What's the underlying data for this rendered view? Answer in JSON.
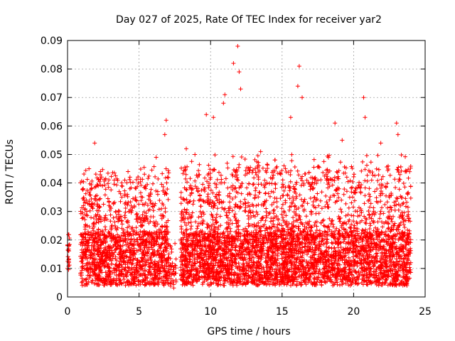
{
  "chart_data": {
    "type": "scatter",
    "title": "Day 027 of 2025, Rate Of TEC Index for receiver yar2",
    "xlabel": "GPS time / hours",
    "ylabel": "ROTI / TECUs",
    "xlim": [
      0,
      25
    ],
    "ylim": [
      0,
      0.09
    ],
    "x_ticks": [
      0,
      5,
      10,
      15,
      20,
      25
    ],
    "y_ticks": [
      0,
      0.01,
      0.02,
      0.03,
      0.04,
      0.05,
      0.06,
      0.07,
      0.08,
      0.09
    ],
    "x_tick_labels": [
      "0",
      "5",
      "10",
      "15",
      "20",
      "25"
    ],
    "y_tick_labels": [
      "0",
      "0.01",
      "0.02",
      "0.03",
      "0.04",
      "0.05",
      "0.06",
      "0.07",
      "0.08",
      "0.09"
    ],
    "grid": true,
    "marker": "+",
    "marker_color": "#ff0000",
    "notable_points": [
      {
        "x": 0.0,
        "y": 0.01
      },
      {
        "x": 0.0,
        "y": 0.018
      },
      {
        "x": 1.1,
        "y": 0.038
      },
      {
        "x": 1.5,
        "y": 0.045
      },
      {
        "x": 1.9,
        "y": 0.054
      },
      {
        "x": 2.3,
        "y": 0.044
      },
      {
        "x": 4.0,
        "y": 0.041
      },
      {
        "x": 6.2,
        "y": 0.049
      },
      {
        "x": 6.8,
        "y": 0.057
      },
      {
        "x": 6.9,
        "y": 0.062
      },
      {
        "x": 8.3,
        "y": 0.052
      },
      {
        "x": 9.7,
        "y": 0.064
      },
      {
        "x": 10.2,
        "y": 0.063
      },
      {
        "x": 10.9,
        "y": 0.068
      },
      {
        "x": 11.0,
        "y": 0.071
      },
      {
        "x": 11.6,
        "y": 0.082
      },
      {
        "x": 11.9,
        "y": 0.088
      },
      {
        "x": 12.0,
        "y": 0.079
      },
      {
        "x": 12.1,
        "y": 0.073
      },
      {
        "x": 13.5,
        "y": 0.051
      },
      {
        "x": 15.6,
        "y": 0.063
      },
      {
        "x": 16.1,
        "y": 0.074
      },
      {
        "x": 16.2,
        "y": 0.081
      },
      {
        "x": 16.4,
        "y": 0.07
      },
      {
        "x": 18.7,
        "y": 0.061
      },
      {
        "x": 19.2,
        "y": 0.055
      },
      {
        "x": 20.7,
        "y": 0.07
      },
      {
        "x": 20.8,
        "y": 0.063
      },
      {
        "x": 21.9,
        "y": 0.054
      },
      {
        "x": 23.0,
        "y": 0.061
      },
      {
        "x": 23.1,
        "y": 0.057
      },
      {
        "x": 23.7,
        "y": 0.044
      }
    ],
    "segments": [
      {
        "x_start": 0.0,
        "x_end": 0.15,
        "base_low": 0.009,
        "base_high": 0.022,
        "peak": 0.021,
        "count": 20
      },
      {
        "x_start": 0.9,
        "x_end": 7.1,
        "base_low": 0.004,
        "base_high": 0.022,
        "peak": 0.046,
        "count": 1500
      },
      {
        "x_start": 7.1,
        "x_end": 7.6,
        "base_low": 0.003,
        "base_high": 0.012,
        "peak": 0.02,
        "count": 40
      },
      {
        "x_start": 7.9,
        "x_end": 24.0,
        "base_low": 0.004,
        "base_high": 0.022,
        "peak": 0.05,
        "count": 4200
      }
    ]
  }
}
